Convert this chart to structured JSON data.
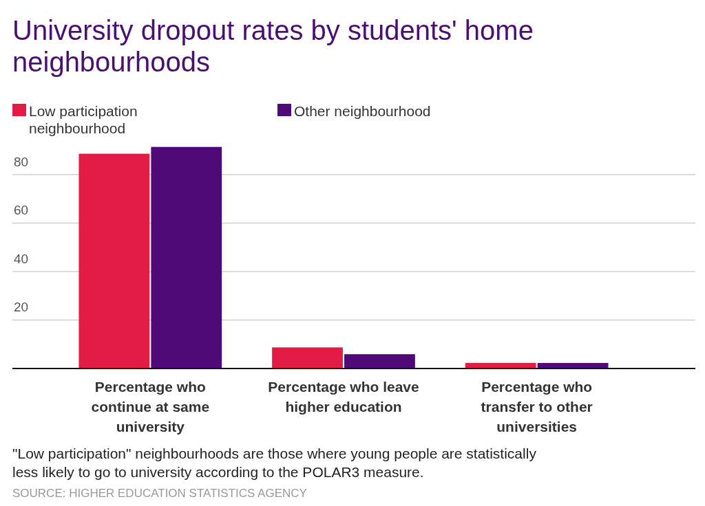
{
  "chart_data": {
    "type": "bar",
    "title": "University dropout rates by students' home neighbourhoods",
    "categories": [
      "Percentage who continue at same university",
      "Percentage who leave higher education",
      "Percentage who transfer to other universities"
    ],
    "series": [
      {
        "name": "Low participation neighbourhood",
        "color": "#e31c45",
        "values": [
          88.6,
          8.7,
          2.3
        ]
      },
      {
        "name": "Other neighbourhood",
        "color": "#4f0a78",
        "values": [
          91.4,
          5.9,
          2.3
        ]
      }
    ],
    "ylim": [
      0,
      91.4
    ],
    "yticks": [
      {
        "value": 0,
        "label": null
      },
      20,
      40,
      60,
      80
    ],
    "grid": "y",
    "legend": "top left",
    "annotations": [
      "\"Low participation\" neighbourhoods are those where young people are statistically less likely to go to university according to the POLAR3 measure.",
      "SOURCE: HIGHER EDUCATION STATISTICS AGENCY"
    ]
  }
}
